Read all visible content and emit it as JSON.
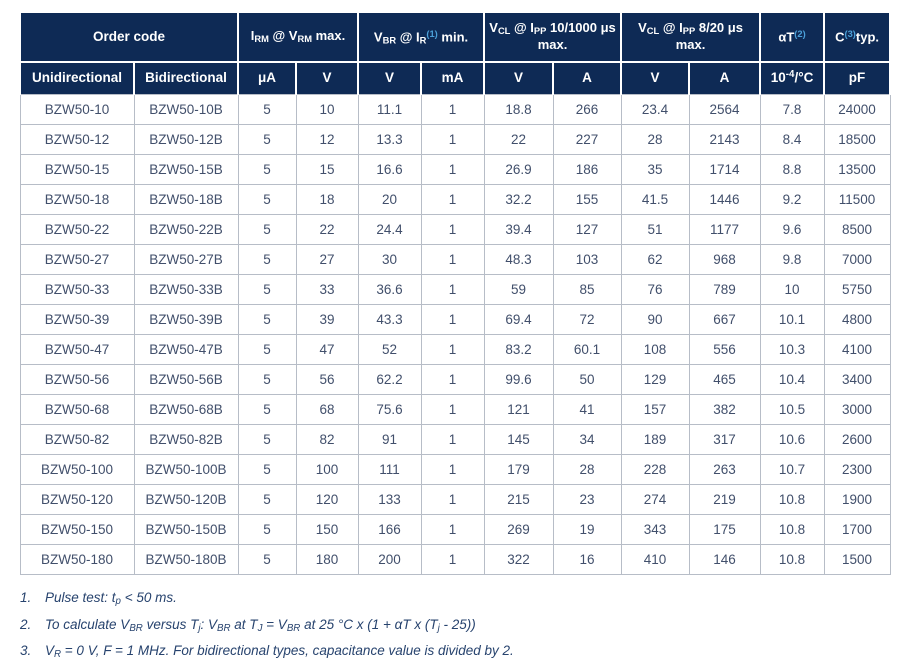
{
  "colors": {
    "header_bg": "#0e2a55",
    "header_text": "#ffffff",
    "superscript_blue": "#4ba0d9",
    "body_text": "#414f6b",
    "grid": "#b7bdc7",
    "footnote_text": "#27436e",
    "page_bg": "#ffffff"
  },
  "table": {
    "header_groups": {
      "order_code": "Order code",
      "irm_vrm": [
        {
          "t": "I"
        },
        {
          "sub": "RM"
        },
        {
          "t": " @ V"
        },
        {
          "sub": "RM"
        },
        {
          "t": " max."
        }
      ],
      "vbr_ir": [
        {
          "t": "V"
        },
        {
          "sub": "BR"
        },
        {
          "t": " @ I"
        },
        {
          "sub": "R"
        },
        {
          "supb": "(1)"
        },
        {
          "t": " min."
        }
      ],
      "vcl_10_1000": [
        {
          "t": "V"
        },
        {
          "sub": "CL"
        },
        {
          "t": " @ I"
        },
        {
          "sub": "PP"
        },
        {
          "t": " 10/1000 μs max."
        }
      ],
      "vcl_8_20": [
        {
          "t": "V"
        },
        {
          "sub": "CL"
        },
        {
          "t": " @ I"
        },
        {
          "sub": "PP"
        },
        {
          "t": " 8/20 μs max."
        }
      ],
      "alpha_t": [
        {
          "t": "αT"
        },
        {
          "supb": "(2)"
        }
      ],
      "c_typ": [
        {
          "t": "C"
        },
        {
          "supb": "(3)"
        },
        {
          "t": "typ."
        }
      ]
    },
    "subheaders": [
      [
        {
          "t": "Unidirectional"
        }
      ],
      [
        {
          "t": "Bidirectional"
        }
      ],
      [
        {
          "t": "μA"
        }
      ],
      [
        {
          "t": "V"
        }
      ],
      [
        {
          "t": "V"
        }
      ],
      [
        {
          "t": "mA"
        }
      ],
      [
        {
          "t": "V"
        }
      ],
      [
        {
          "t": "A"
        }
      ],
      [
        {
          "t": "V"
        }
      ],
      [
        {
          "t": "A"
        }
      ],
      [
        {
          "t": "10"
        },
        {
          "sup": "-4"
        },
        {
          "t": "/°C"
        }
      ],
      [
        {
          "t": "pF"
        }
      ]
    ],
    "rows": [
      [
        "BZW50-10",
        "BZW50-10B",
        "5",
        "10",
        "11.1",
        "1",
        "18.8",
        "266",
        "23.4",
        "2564",
        "7.8",
        "24000"
      ],
      [
        "BZW50-12",
        "BZW50-12B",
        "5",
        "12",
        "13.3",
        "1",
        "22",
        "227",
        "28",
        "2143",
        "8.4",
        "18500"
      ],
      [
        "BZW50-15",
        "BZW50-15B",
        "5",
        "15",
        "16.6",
        "1",
        "26.9",
        "186",
        "35",
        "1714",
        "8.8",
        "13500"
      ],
      [
        "BZW50-18",
        "BZW50-18B",
        "5",
        "18",
        "20",
        "1",
        "32.2",
        "155",
        "41.5",
        "1446",
        "9.2",
        "11500"
      ],
      [
        "BZW50-22",
        "BZW50-22B",
        "5",
        "22",
        "24.4",
        "1",
        "39.4",
        "127",
        "51",
        "1177",
        "9.6",
        "8500"
      ],
      [
        "BZW50-27",
        "BZW50-27B",
        "5",
        "27",
        "30",
        "1",
        "48.3",
        "103",
        "62",
        "968",
        "9.8",
        "7000"
      ],
      [
        "BZW50-33",
        "BZW50-33B",
        "5",
        "33",
        "36.6",
        "1",
        "59",
        "85",
        "76",
        "789",
        "10",
        "5750"
      ],
      [
        "BZW50-39",
        "BZW50-39B",
        "5",
        "39",
        "43.3",
        "1",
        "69.4",
        "72",
        "90",
        "667",
        "10.1",
        "4800"
      ],
      [
        "BZW50-47",
        "BZW50-47B",
        "5",
        "47",
        "52",
        "1",
        "83.2",
        "60.1",
        "108",
        "556",
        "10.3",
        "4100"
      ],
      [
        "BZW50-56",
        "BZW50-56B",
        "5",
        "56",
        "62.2",
        "1",
        "99.6",
        "50",
        "129",
        "465",
        "10.4",
        "3400"
      ],
      [
        "BZW50-68",
        "BZW50-68B",
        "5",
        "68",
        "75.6",
        "1",
        "121",
        "41",
        "157",
        "382",
        "10.5",
        "3000"
      ],
      [
        "BZW50-82",
        "BZW50-82B",
        "5",
        "82",
        "91",
        "1",
        "145",
        "34",
        "189",
        "317",
        "10.6",
        "2600"
      ],
      [
        "BZW50-100",
        "BZW50-100B",
        "5",
        "100",
        "111",
        "1",
        "179",
        "28",
        "228",
        "263",
        "10.7",
        "2300"
      ],
      [
        "BZW50-120",
        "BZW50-120B",
        "5",
        "120",
        "133",
        "1",
        "215",
        "23",
        "274",
        "219",
        "10.8",
        "1900"
      ],
      [
        "BZW50-150",
        "BZW50-150B",
        "5",
        "150",
        "166",
        "1",
        "269",
        "19",
        "343",
        "175",
        "10.8",
        "1700"
      ],
      [
        "BZW50-180",
        "BZW50-180B",
        "5",
        "180",
        "200",
        "1",
        "322",
        "16",
        "410",
        "146",
        "10.8",
        "1500"
      ]
    ]
  },
  "footnotes": [
    {
      "num": "1.",
      "segments": [
        {
          "t": "Pulse test: t"
        },
        {
          "sub": "p"
        },
        {
          "t": " < 50 ms."
        }
      ]
    },
    {
      "num": "2.",
      "segments": [
        {
          "t": "To calculate V"
        },
        {
          "sub": "BR"
        },
        {
          "t": " versus T"
        },
        {
          "sub": "j"
        },
        {
          "t": ": V"
        },
        {
          "sub": "BR"
        },
        {
          "t": " at T"
        },
        {
          "sub": "J"
        },
        {
          "t": " = V"
        },
        {
          "sub": "BR"
        },
        {
          "t": " at 25 °C x (1 + αT x (T"
        },
        {
          "sub": "j"
        },
        {
          "t": " - 25))"
        }
      ]
    },
    {
      "num": "3.",
      "segments": [
        {
          "t": "V"
        },
        {
          "sub": "R"
        },
        {
          "t": " = 0 V, F = 1 MHz. For bidirectional types, capacitance value is divided by 2."
        }
      ]
    }
  ]
}
